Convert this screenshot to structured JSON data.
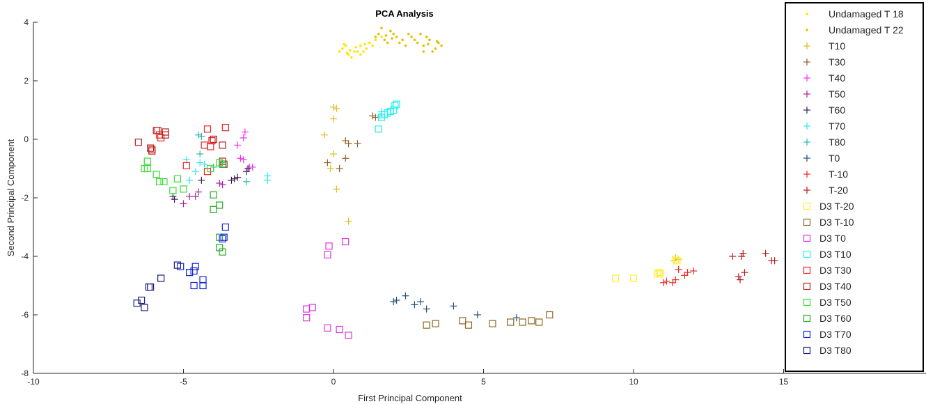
{
  "chart_data": {
    "type": "scatter",
    "title": "PCA Analysis",
    "xlabel": "First Principal Component",
    "ylabel": "Second Principal Component",
    "xlim": [
      -10,
      20
    ],
    "ylim": [
      -8,
      4
    ],
    "xticks": [
      -10,
      -5,
      0,
      5,
      10,
      15
    ],
    "yticks": [
      -8,
      -6,
      -4,
      -2,
      0,
      2,
      4
    ],
    "grid": false,
    "legend_position": "top-right",
    "series": [
      {
        "name": "Undamaged T 18",
        "marker": "dot",
        "color": "#ffe600",
        "points": [
          [
            0.3,
            3.1
          ],
          [
            0.5,
            2.9
          ],
          [
            0.7,
            3.0
          ],
          [
            0.9,
            3.2
          ],
          [
            1.0,
            3.0
          ],
          [
            1.2,
            3.3
          ],
          [
            1.1,
            3.1
          ],
          [
            0.6,
            2.8
          ],
          [
            0.4,
            3.2
          ],
          [
            0.8,
            3.0
          ],
          [
            1.4,
            3.4
          ],
          [
            1.6,
            3.5
          ],
          [
            0.2,
            3.0
          ],
          [
            0.9,
            2.9
          ],
          [
            1.3,
            3.2
          ],
          [
            0.55,
            3.05
          ],
          [
            0.75,
            3.15
          ],
          [
            1.05,
            3.25
          ],
          [
            0.45,
            2.95
          ],
          [
            0.35,
            3.25
          ]
        ]
      },
      {
        "name": "Undamaged T 22",
        "marker": "dot",
        "color": "#e3c200",
        "points": [
          [
            1.5,
            3.6
          ],
          [
            1.7,
            3.4
          ],
          [
            1.9,
            3.7
          ],
          [
            2.1,
            3.5
          ],
          [
            1.6,
            3.8
          ],
          [
            1.8,
            3.3
          ],
          [
            2.0,
            3.6
          ],
          [
            2.3,
            3.4
          ],
          [
            2.6,
            3.5
          ],
          [
            2.8,
            3.3
          ],
          [
            3.0,
            3.2
          ],
          [
            3.2,
            3.4
          ],
          [
            3.4,
            3.1
          ],
          [
            3.1,
            3.5
          ],
          [
            2.9,
            3.6
          ],
          [
            3.3,
            3.0
          ],
          [
            3.5,
            3.3
          ],
          [
            3.6,
            3.2
          ],
          [
            1.4,
            3.5
          ],
          [
            2.2,
            3.3
          ],
          [
            2.5,
            3.6
          ],
          [
            2.7,
            3.4
          ],
          [
            3.0,
            3.0
          ],
          [
            1.75,
            3.55
          ],
          [
            1.95,
            3.45
          ],
          [
            2.4,
            3.2
          ],
          [
            3.15,
            3.25
          ],
          [
            3.45,
            3.35
          ]
        ]
      },
      {
        "name": "T10",
        "marker": "plus",
        "color": "#ddbb22",
        "points": [
          [
            0.0,
            1.1
          ],
          [
            0.1,
            1.05
          ],
          [
            0.0,
            0.7
          ],
          [
            -0.3,
            0.15
          ],
          [
            0.0,
            -0.5
          ],
          [
            -0.1,
            -1.0
          ],
          [
            0.1,
            -1.7
          ],
          [
            0.5,
            -2.8
          ],
          [
            11.4,
            -4.05
          ],
          [
            11.5,
            -4.1
          ],
          [
            11.35,
            -4.15
          ]
        ]
      },
      {
        "name": "T30",
        "marker": "plus",
        "color": "#8b6423",
        "points": [
          [
            0.4,
            -0.05
          ],
          [
            0.5,
            -0.15
          ],
          [
            0.8,
            -0.15
          ],
          [
            0.4,
            -0.65
          ],
          [
            0.2,
            -1.0
          ],
          [
            -0.2,
            -0.8
          ],
          [
            1.3,
            0.8
          ],
          [
            1.4,
            0.75
          ]
        ]
      },
      {
        "name": "T40",
        "marker": "plus",
        "color": "#ee33ee",
        "points": [
          [
            -3.0,
            0.05
          ],
          [
            -2.95,
            0.25
          ],
          [
            -3.2,
            -0.2
          ],
          [
            -3.1,
            -0.65
          ],
          [
            -3.0,
            -0.7
          ],
          [
            -2.8,
            -0.95
          ],
          [
            -2.7,
            -0.95
          ]
        ]
      },
      {
        "name": "T50",
        "marker": "plus",
        "color": "#a323a3",
        "points": [
          [
            -5.0,
            -2.2
          ],
          [
            -4.8,
            -1.95
          ],
          [
            -4.5,
            -1.8
          ],
          [
            -4.6,
            -1.95
          ],
          [
            -3.8,
            -1.5
          ],
          [
            -3.7,
            -1.55
          ]
        ]
      },
      {
        "name": "T60",
        "marker": "plus",
        "color": "#3c1e4f",
        "points": [
          [
            -5.3,
            -2.05
          ],
          [
            -5.35,
            -1.95
          ],
          [
            -4.4,
            -1.4
          ],
          [
            -3.4,
            -1.4
          ],
          [
            -3.3,
            -1.35
          ],
          [
            -3.2,
            -1.3
          ],
          [
            -2.9,
            -1.1
          ],
          [
            -2.85,
            -1.0
          ]
        ]
      },
      {
        "name": "T70",
        "marker": "plus",
        "color": "#2ae8f0",
        "points": [
          [
            -4.45,
            -0.8
          ],
          [
            -4.3,
            -0.85
          ],
          [
            -4.6,
            -1.1
          ],
          [
            -4.8,
            -1.4
          ],
          [
            -4.9,
            -0.7
          ],
          [
            -2.2,
            -1.25
          ],
          [
            -2.2,
            -1.4
          ],
          [
            1.55,
            0.8
          ],
          [
            1.6,
            0.95
          ]
        ]
      },
      {
        "name": "T80",
        "marker": "plus",
        "color": "#2ab5a8",
        "points": [
          [
            -4.5,
            0.15
          ],
          [
            -4.4,
            0.1
          ],
          [
            -4.45,
            -0.5
          ],
          [
            -4.0,
            -0.95
          ],
          [
            -2.9,
            -1.45
          ],
          [
            -3.7,
            -0.8
          ]
        ]
      },
      {
        "name": "T0",
        "marker": "plus",
        "color": "#1f4e79",
        "points": [
          [
            2.0,
            -5.55
          ],
          [
            2.1,
            -5.5
          ],
          [
            2.4,
            -5.35
          ],
          [
            2.7,
            -5.65
          ],
          [
            2.9,
            -5.55
          ],
          [
            3.1,
            -5.8
          ],
          [
            4.0,
            -5.7
          ],
          [
            4.8,
            -6.0
          ],
          [
            6.1,
            -6.1
          ]
        ]
      },
      {
        "name": "T-10",
        "marker": "plus",
        "color": "#ee2222",
        "points": [
          [
            11.0,
            -4.9
          ],
          [
            11.1,
            -4.85
          ],
          [
            11.3,
            -4.9
          ],
          [
            11.4,
            -4.8
          ],
          [
            11.5,
            -4.45
          ],
          [
            11.7,
            -4.65
          ],
          [
            11.8,
            -4.55
          ],
          [
            12.0,
            -4.5
          ]
        ]
      },
      {
        "name": "T-20",
        "marker": "plus",
        "color": "#b21c1c",
        "points": [
          [
            13.3,
            -4.0
          ],
          [
            13.5,
            -4.7
          ],
          [
            13.55,
            -4.8
          ],
          [
            13.6,
            -4.0
          ],
          [
            13.65,
            -3.9
          ],
          [
            13.7,
            -4.55
          ],
          [
            14.4,
            -3.9
          ],
          [
            14.6,
            -4.15
          ],
          [
            14.7,
            -4.15
          ]
        ]
      },
      {
        "name": "D3 T-20",
        "marker": "square",
        "color": "#ffee33",
        "points": [
          [
            9.4,
            -4.75
          ],
          [
            10.0,
            -4.75
          ],
          [
            10.8,
            -4.6
          ],
          [
            10.85,
            -4.55
          ],
          [
            10.9,
            -4.6
          ],
          [
            11.4,
            -4.1
          ],
          [
            11.45,
            -4.15
          ]
        ]
      },
      {
        "name": "D3 T-10",
        "marker": "square",
        "color": "#8b6420",
        "points": [
          [
            3.1,
            -6.35
          ],
          [
            3.4,
            -6.3
          ],
          [
            4.3,
            -6.2
          ],
          [
            4.5,
            -6.35
          ],
          [
            5.3,
            -6.3
          ],
          [
            5.9,
            -6.25
          ],
          [
            6.3,
            -6.25
          ],
          [
            6.6,
            -6.2
          ],
          [
            6.85,
            -6.25
          ],
          [
            7.2,
            -6.0
          ]
        ]
      },
      {
        "name": "D3 T0",
        "marker": "square",
        "color": "#dd33dd",
        "points": [
          [
            -0.9,
            -5.8
          ],
          [
            -0.7,
            -5.75
          ],
          [
            -0.9,
            -6.1
          ],
          [
            -0.2,
            -6.45
          ],
          [
            0.2,
            -6.5
          ],
          [
            0.5,
            -6.7
          ],
          [
            -0.15,
            -3.65
          ],
          [
            -0.2,
            -3.95
          ],
          [
            0.4,
            -3.5
          ]
        ]
      },
      {
        "name": "D3 T10",
        "marker": "square",
        "color": "#22eeee",
        "points": [
          [
            1.5,
            0.35
          ],
          [
            1.6,
            0.75
          ],
          [
            1.7,
            0.85
          ],
          [
            1.8,
            0.9
          ],
          [
            1.9,
            0.95
          ],
          [
            2.0,
            1.0
          ],
          [
            2.05,
            1.15
          ],
          [
            2.1,
            1.2
          ]
        ]
      },
      {
        "name": "D3 T30",
        "marker": "square",
        "color": "#ee2222",
        "points": [
          [
            -5.85,
            0.3
          ],
          [
            -5.8,
            0.15
          ],
          [
            -5.75,
            0.05
          ],
          [
            -4.2,
            0.35
          ],
          [
            -3.6,
            0.4
          ],
          [
            -4.0,
            0.0
          ],
          [
            -4.05,
            -0.05
          ],
          [
            -4.1,
            -0.25
          ],
          [
            -4.3,
            -0.2
          ],
          [
            -4.2,
            -1.1
          ],
          [
            -4.9,
            -0.9
          ],
          [
            -6.05,
            -0.35
          ]
        ]
      },
      {
        "name": "D3 T40",
        "marker": "square",
        "color": "#b02020",
        "points": [
          [
            -6.5,
            -0.1
          ],
          [
            -6.1,
            -0.3
          ],
          [
            -6.05,
            -0.4
          ],
          [
            -5.9,
            0.3
          ],
          [
            -5.6,
            0.25
          ],
          [
            -5.6,
            0.15
          ],
          [
            -4.0,
            0.0
          ],
          [
            -3.7,
            -0.2
          ],
          [
            -3.7,
            -0.75
          ],
          [
            -3.65,
            -0.85
          ]
        ]
      },
      {
        "name": "D3 T50",
        "marker": "square",
        "color": "#33dd33",
        "points": [
          [
            -6.2,
            -0.75
          ],
          [
            -6.3,
            -1.0
          ],
          [
            -6.2,
            -1.0
          ],
          [
            -5.9,
            -1.2
          ],
          [
            -5.8,
            -1.45
          ],
          [
            -5.65,
            -1.45
          ],
          [
            -5.2,
            -1.35
          ],
          [
            -5.35,
            -1.75
          ],
          [
            -5.0,
            -1.7
          ],
          [
            -4.1,
            -1.0
          ],
          [
            -3.8,
            -0.8
          ]
        ]
      },
      {
        "name": "D3 T60",
        "marker": "square",
        "color": "#22aa22",
        "points": [
          [
            -4.0,
            -1.9
          ],
          [
            -4.0,
            -2.4
          ],
          [
            -3.8,
            -2.25
          ],
          [
            -3.8,
            -3.35
          ],
          [
            -3.8,
            -3.7
          ],
          [
            -3.7,
            -3.85
          ],
          [
            -3.7,
            -0.85
          ]
        ]
      },
      {
        "name": "D3 T70",
        "marker": "square",
        "color": "#1122dd",
        "points": [
          [
            -3.6,
            -3.0
          ],
          [
            -3.65,
            -3.35
          ],
          [
            -3.7,
            -3.4
          ],
          [
            -4.6,
            -4.35
          ],
          [
            -4.8,
            -4.55
          ],
          [
            -5.1,
            -4.35
          ],
          [
            -4.35,
            -4.8
          ],
          [
            -4.35,
            -5.0
          ],
          [
            -4.65,
            -5.0
          ],
          [
            -4.65,
            -4.5
          ]
        ]
      },
      {
        "name": "D3 T80",
        "marker": "square",
        "color": "#1a1a80",
        "points": [
          [
            -5.2,
            -4.3
          ],
          [
            -5.75,
            -4.75
          ],
          [
            -6.1,
            -5.05
          ],
          [
            -6.15,
            -5.05
          ],
          [
            -6.4,
            -5.5
          ],
          [
            -6.55,
            -5.6
          ],
          [
            -6.3,
            -5.75
          ]
        ]
      }
    ]
  }
}
